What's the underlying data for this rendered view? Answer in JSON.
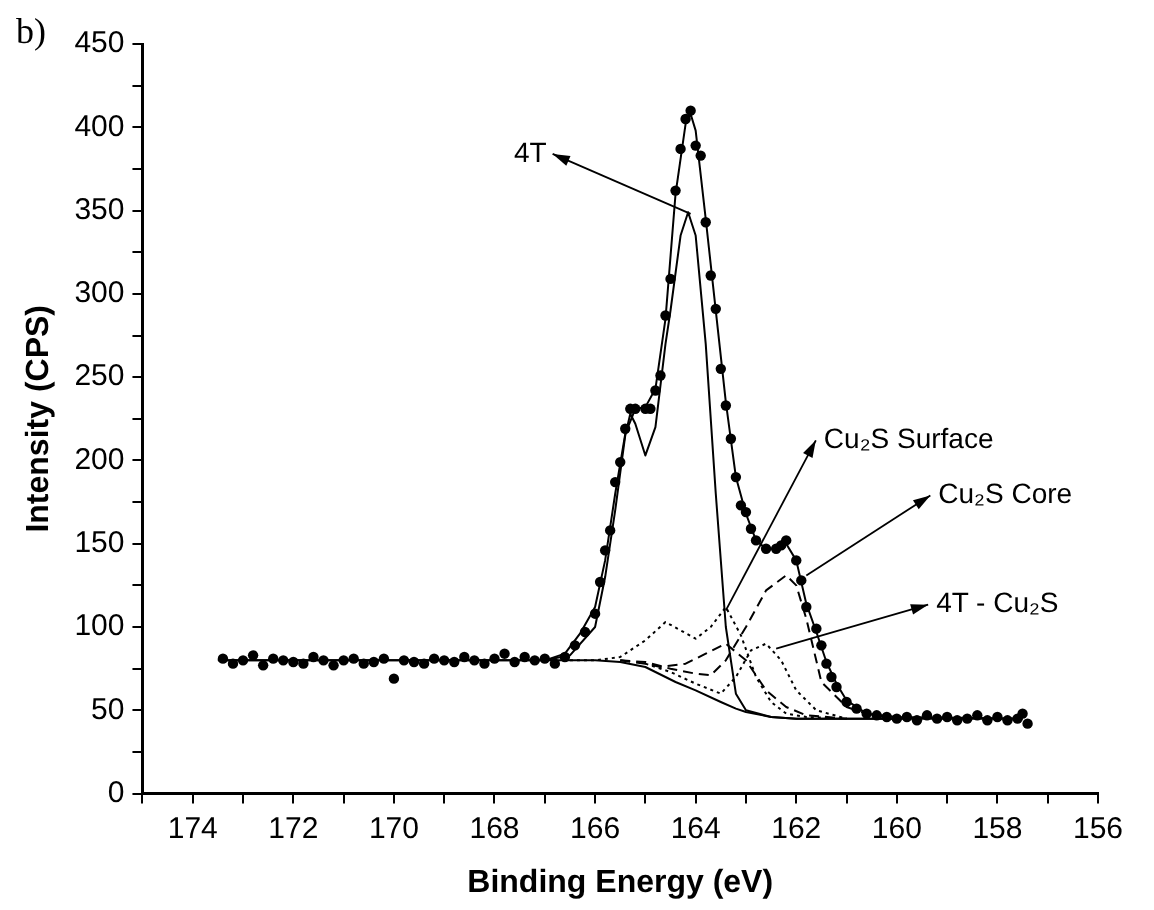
{
  "chart_data": {
    "type": "scatter",
    "xlabel": "Binding Energy (eV)",
    "ylabel": "Intensity (CPS)",
    "xlim": [
      175,
      156
    ],
    "ylim": [
      0,
      450
    ],
    "xticks": [
      {
        "value": 175,
        "label": null
      },
      174,
      {
        "value": 173,
        "label": null
      },
      172,
      {
        "value": 171,
        "label": null
      },
      170,
      {
        "value": 169,
        "label": null
      },
      168,
      {
        "value": 167,
        "label": null
      },
      166,
      {
        "value": 165,
        "label": null
      },
      164,
      {
        "value": 163,
        "label": null
      },
      162,
      {
        "value": 161,
        "label": null
      },
      160,
      {
        "value": 159,
        "label": null
      },
      158,
      {
        "value": 157,
        "label": null
      },
      156
    ],
    "yticks": [
      0,
      {
        "value": 25,
        "label": null
      },
      50,
      {
        "value": 75,
        "label": null
      },
      100,
      {
        "value": 125,
        "label": null
      },
      150,
      {
        "value": 175,
        "label": null
      },
      200,
      {
        "value": 225,
        "label": null
      },
      250,
      {
        "value": 275,
        "label": null
      },
      300,
      {
        "value": 325,
        "label": null
      },
      350,
      {
        "value": 375,
        "label": null
      },
      400,
      {
        "value": 425,
        "label": null
      },
      450
    ],
    "grid": false,
    "legend": false,
    "annotations": [
      "b)",
      {
        "text": "4T",
        "x": 164.1,
        "y": 348
      },
      {
        "text": "Cu₂S Surface",
        "x": 163.4,
        "y": 110
      },
      {
        "text": "Cu₂S Core",
        "x": 161.8,
        "y": 131
      },
      {
        "text": "4T - Cu₂S",
        "x": 162.4,
        "y": 87
      }
    ],
    "series": [
      {
        "color": "#000000",
        "marker": "circle",
        "x": [
          173.4,
          173.2,
          173.0,
          172.8,
          172.6,
          172.4,
          172.2,
          172.0,
          171.8,
          171.6,
          171.4,
          171.2,
          171.0,
          170.8,
          170.6,
          170.4,
          170.2,
          170.0,
          169.8,
          169.6,
          169.4,
          169.2,
          169.0,
          168.8,
          168.6,
          168.4,
          168.2,
          168.0,
          167.8,
          167.6,
          167.4,
          167.2,
          167.0,
          166.8,
          166.6,
          166.4,
          166.2,
          166.0,
          165.9,
          165.8,
          165.7,
          165.6,
          165.5,
          165.4,
          165.3,
          165.2,
          165.0,
          164.9,
          164.8,
          164.7,
          164.6,
          164.5,
          164.4,
          164.3,
          164.2,
          164.1,
          164.0,
          163.9,
          163.8,
          163.7,
          163.6,
          163.5,
          163.4,
          163.3,
          163.2,
          163.1,
          163.0,
          162.9,
          162.8,
          162.6,
          162.4,
          162.3,
          162.2,
          162.0,
          161.9,
          161.8,
          161.6,
          161.5,
          161.4,
          161.3,
          161.2,
          161.0,
          160.8,
          160.6,
          160.4,
          160.2,
          160.0,
          159.8,
          159.6,
          159.4,
          159.2,
          159.0,
          158.8,
          158.6,
          158.4,
          158.2,
          158.0,
          157.8,
          157.6,
          157.5,
          157.4
        ],
        "values": [
          81,
          78,
          80,
          83,
          77,
          81,
          80,
          79,
          78,
          82,
          80,
          77,
          80,
          81,
          78,
          79,
          81,
          69,
          80,
          79,
          78,
          81,
          80,
          79,
          82,
          80,
          78,
          81,
          84,
          79,
          82,
          80,
          81,
          78,
          82,
          89,
          97,
          108,
          127,
          146,
          158,
          187,
          199,
          219,
          231,
          231,
          231,
          231,
          242,
          251,
          287,
          309,
          362,
          387,
          405,
          410,
          389,
          383,
          343,
          311,
          291,
          255,
          233,
          213,
          190,
          173,
          169,
          159,
          152,
          147,
          147,
          149,
          152,
          140,
          128,
          112,
          99,
          89,
          78,
          70,
          64,
          55,
          51,
          48,
          47,
          46,
          45,
          46,
          44,
          47,
          45,
          46,
          44,
          45,
          47,
          44,
          46,
          44,
          45,
          48,
          42
        ]
      },
      {
        "type": "line",
        "color": "#000000",
        "line_style": "solid",
        "x": [
          173.5,
          167.0,
          166.6,
          166.3,
          166.0,
          165.8,
          165.6,
          165.4,
          165.2,
          165.0,
          164.8,
          164.6,
          164.4,
          164.2,
          164.1,
          164.0,
          163.8,
          163.6,
          163.4,
          163.2,
          163.0,
          162.8,
          162.6,
          162.4,
          162.2,
          162.0,
          161.8,
          161.6,
          161.4,
          161.2,
          161.0,
          160.6,
          160.0,
          157.5
        ],
        "values": [
          80,
          80,
          84,
          96,
          112,
          140,
          180,
          216,
          231,
          232,
          243,
          285,
          360,
          402,
          408,
          398,
          345,
          290,
          235,
          190,
          168,
          152,
          147,
          147,
          150,
          140,
          114,
          97,
          79,
          66,
          56,
          48,
          46,
          45
        ]
      },
      {
        "type": "line",
        "color": "#000000",
        "line_style": "solid",
        "x": [
          167.0,
          166.5,
          166.0,
          165.8,
          165.6,
          165.4,
          165.3,
          165.2,
          165.0,
          164.8,
          164.6,
          164.5,
          164.3,
          164.15,
          164.0,
          163.8,
          163.6,
          163.4,
          163.2,
          163.0,
          162.5,
          162.0,
          160.0
        ],
        "values": [
          80,
          83,
          100,
          130,
          170,
          215,
          228,
          222,
          203,
          220,
          270,
          290,
          335,
          349,
          335,
          270,
          180,
          100,
          60,
          50,
          46,
          45,
          45
        ]
      },
      {
        "type": "line",
        "color": "#000000",
        "line_style": "solid",
        "x": [
          173.5,
          167.0,
          166.0,
          165.5,
          165.0,
          164.4,
          164.0,
          163.5,
          163.2,
          163.0,
          162.5,
          162.0,
          161.0,
          157.5
        ],
        "values": [
          80,
          80,
          80,
          79,
          76,
          67,
          62,
          55,
          51,
          49,
          46,
          45,
          45,
          45
        ]
      },
      {
        "type": "line",
        "color": "#000000",
        "line_style": "dotted",
        "x": [
          166.5,
          166.0,
          165.5,
          165.0,
          164.6,
          164.3,
          164.0,
          163.7,
          163.4,
          163.1,
          162.8,
          162.5,
          162.2,
          161.8,
          161.0
        ],
        "values": [
          80,
          80,
          82,
          92,
          103,
          98,
          93,
          100,
          112,
          95,
          70,
          55,
          48,
          46,
          45
        ]
      },
      {
        "type": "line",
        "color": "#000000",
        "line_style": "dashed",
        "x": [
          165.5,
          165.0,
          164.5,
          164.0,
          163.7,
          163.4,
          163.0,
          162.6,
          162.2,
          162.0,
          161.8,
          161.5,
          161.0,
          160.5,
          160.0
        ],
        "values": [
          80,
          79,
          75,
          72,
          71,
          80,
          100,
          122,
          131,
          125,
          105,
          67,
          52,
          47,
          45
        ]
      },
      {
        "type": "line",
        "color": "#000000",
        "line_style": "dashed",
        "x": [
          165.5,
          165.0,
          164.7,
          164.2,
          163.8,
          163.4,
          163.0,
          162.6,
          162.2,
          161.8,
          161.0
        ],
        "values": [
          80,
          78,
          76,
          78,
          84,
          90,
          80,
          62,
          52,
          47,
          45
        ]
      },
      {
        "type": "line",
        "color": "#000000",
        "line_style": "dotted",
        "x": [
          165.0,
          164.5,
          164.0,
          163.5,
          163.2,
          162.9,
          162.6,
          162.3,
          162.0,
          161.6,
          161.0
        ],
        "values": [
          78,
          73,
          66,
          60,
          70,
          86,
          90,
          80,
          62,
          50,
          45
        ]
      }
    ]
  }
}
